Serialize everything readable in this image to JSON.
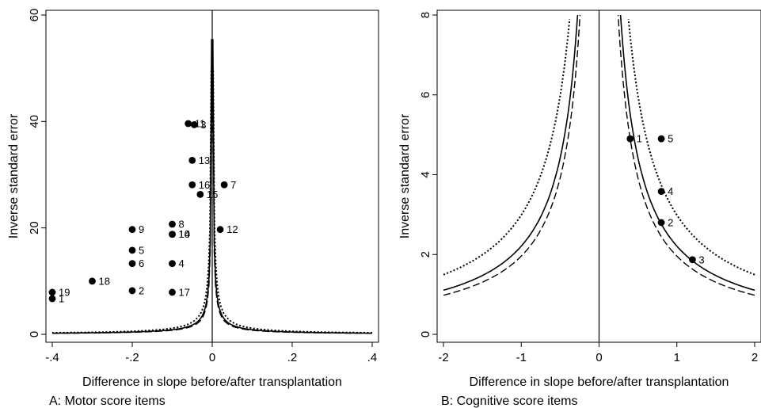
{
  "chart_data": [
    {
      "type": "scatter",
      "caption": "A: Motor score items",
      "xlabel": "Difference in slope before/after transplantation",
      "ylabel": "Inverse standard error",
      "xlim": [
        -0.4,
        0.4
      ],
      "ylim": [
        0,
        60
      ],
      "x_ticks": [
        -0.4,
        -0.2,
        0,
        0.2,
        0.4
      ],
      "x_tick_labels": [
        "-.4",
        "-.2",
        "0",
        ".2",
        ".4"
      ],
      "y_ticks": [
        0,
        20,
        40,
        60
      ],
      "y_tick_labels": [
        "0",
        "20",
        "40",
        "60"
      ],
      "vertical_reference_x": 0,
      "points": [
        {
          "label": "1",
          "x": -0.4,
          "y": 6.7
        },
        {
          "label": "2",
          "x": -0.2,
          "y": 8.2
        },
        {
          "label": "3",
          "x": -0.045,
          "y": 39.4
        },
        {
          "label": "4",
          "x": -0.1,
          "y": 13.3
        },
        {
          "label": "5",
          "x": -0.2,
          "y": 15.8
        },
        {
          "label": "6",
          "x": -0.2,
          "y": 13.3
        },
        {
          "label": "7",
          "x": 0.03,
          "y": 28.1
        },
        {
          "label": "8",
          "x": -0.1,
          "y": 20.7
        },
        {
          "label": "9",
          "x": -0.2,
          "y": 19.7
        },
        {
          "label": "10",
          "x": -0.1,
          "y": 18.8
        },
        {
          "label": "11",
          "x": -0.06,
          "y": 39.6
        },
        {
          "label": "12",
          "x": 0.02,
          "y": 19.7
        },
        {
          "label": "13",
          "x": -0.05,
          "y": 32.7
        },
        {
          "label": "14",
          "x": -0.1,
          "y": 18.8
        },
        {
          "label": "15",
          "x": -0.03,
          "y": 26.3
        },
        {
          "label": "16",
          "x": -0.05,
          "y": 28.1
        },
        {
          "label": "17",
          "x": -0.1,
          "y": 7.9
        },
        {
          "label": "18",
          "x": -0.3,
          "y": 10.0
        },
        {
          "label": "19",
          "x": -0.4,
          "y": 7.9
        }
      ],
      "funnel_lines": [
        {
          "style": "solid",
          "k": 0.0873
        },
        {
          "style": "dashed",
          "k": 0.0765
        },
        {
          "style": "dotted",
          "k": 0.1147
        }
      ],
      "funnel_y_max": [
        55.5,
        48.5,
        50.0
      ]
    },
    {
      "type": "scatter",
      "caption": "B: Cognitive score items",
      "xlabel": "Difference in slope before/after transplantation",
      "ylabel": "Inverse standard error",
      "xlim": [
        -2,
        2
      ],
      "ylim": [
        0,
        8
      ],
      "x_ticks": [
        -2,
        -1,
        0,
        1,
        2
      ],
      "x_tick_labels": [
        "-2",
        "-1",
        "0",
        "1",
        "2"
      ],
      "y_ticks": [
        0,
        2,
        4,
        6,
        8
      ],
      "y_tick_labels": [
        "0",
        "2",
        "4",
        "6",
        "8"
      ],
      "vertical_reference_x": 0,
      "points": [
        {
          "label": "1",
          "x": 0.4,
          "y": 4.9
        },
        {
          "label": "2",
          "x": 0.8,
          "y": 2.8
        },
        {
          "label": "3",
          "x": 1.2,
          "y": 1.87
        },
        {
          "label": "4",
          "x": 0.8,
          "y": 3.58
        },
        {
          "label": "5",
          "x": 0.8,
          "y": 4.9
        }
      ],
      "funnel_lines": [
        {
          "style": "solid",
          "k": 2.21
        },
        {
          "style": "dashed",
          "k": 1.96
        },
        {
          "style": "dotted",
          "k": 2.99
        }
      ],
      "funnel_y_max": [
        8.0,
        8.0,
        7.9
      ]
    }
  ]
}
